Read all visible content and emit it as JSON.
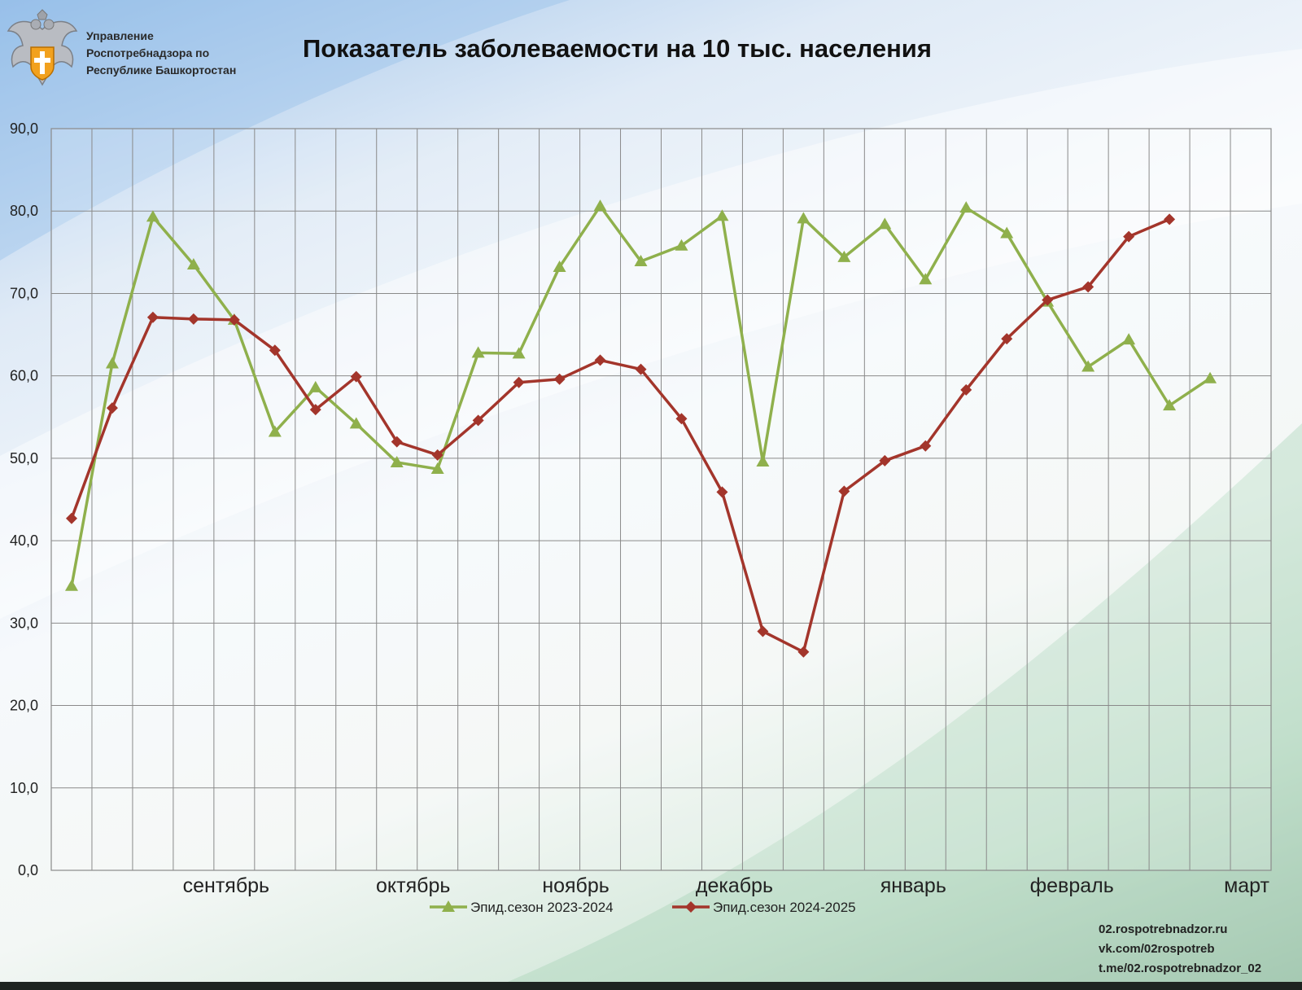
{
  "header": {
    "org_lines": [
      "Управление",
      "Роспотребнадзора по",
      "Республике Башкортостан"
    ],
    "title": "Показатель заболеваемости на 10 тыс. населения"
  },
  "footer": {
    "links": [
      "02.rospotrebnadzor.ru",
      "vk.com/02rospotreb",
      "t.me/02.rospotrebnadzor_02"
    ]
  },
  "colors": {
    "series_2023_2024": "#8fb04c",
    "series_2024_2025": "#a3352b",
    "grid": "#8a8a8a"
  },
  "chart_data": {
    "type": "line",
    "title": "Показатель заболеваемости на 10 тыс. населения",
    "ylim": [
      0,
      90
    ],
    "y_ticks": [
      "0,0",
      "10,0",
      "20,0",
      "30,0",
      "40,0",
      "50,0",
      "60,0",
      "70,0",
      "80,0",
      "90,0"
    ],
    "x_points": 29,
    "month_labels": [
      {
        "label": "сентябрь",
        "at_point": 3.8
      },
      {
        "label": "октябрь",
        "at_point": 8.4
      },
      {
        "label": "ноябрь",
        "at_point": 12.4
      },
      {
        "label": "декабрь",
        "at_point": 16.3
      },
      {
        "label": "январь",
        "at_point": 20.7
      },
      {
        "label": "февраль",
        "at_point": 24.6
      },
      {
        "label": "март",
        "at_point": 28.9
      }
    ],
    "grid": true,
    "legend_position": "bottom",
    "series": [
      {
        "name": "Эпид.сезон 2023-2024",
        "marker": "triangle",
        "values": [
          34.5,
          61.5,
          79.3,
          73.5,
          66.8,
          53.2,
          58.6,
          54.2,
          49.5,
          48.7,
          62.8,
          62.7,
          73.2,
          80.6,
          73.9,
          75.8,
          79.4,
          49.6,
          79.1,
          74.4,
          78.4,
          71.7,
          80.4,
          77.3,
          69.0,
          61.1,
          64.4,
          56.4,
          59.7
        ]
      },
      {
        "name": "Эпид.сезон 2024-2025",
        "marker": "diamond",
        "values": [
          42.7,
          56.1,
          67.1,
          66.9,
          66.8,
          63.1,
          55.9,
          59.9,
          52.0,
          50.4,
          54.6,
          59.2,
          59.6,
          61.9,
          60.8,
          54.8,
          45.9,
          29.0,
          26.5,
          46.0,
          49.7,
          51.5,
          58.3,
          64.5,
          69.2,
          70.8,
          76.9,
          79.0
        ]
      }
    ]
  }
}
